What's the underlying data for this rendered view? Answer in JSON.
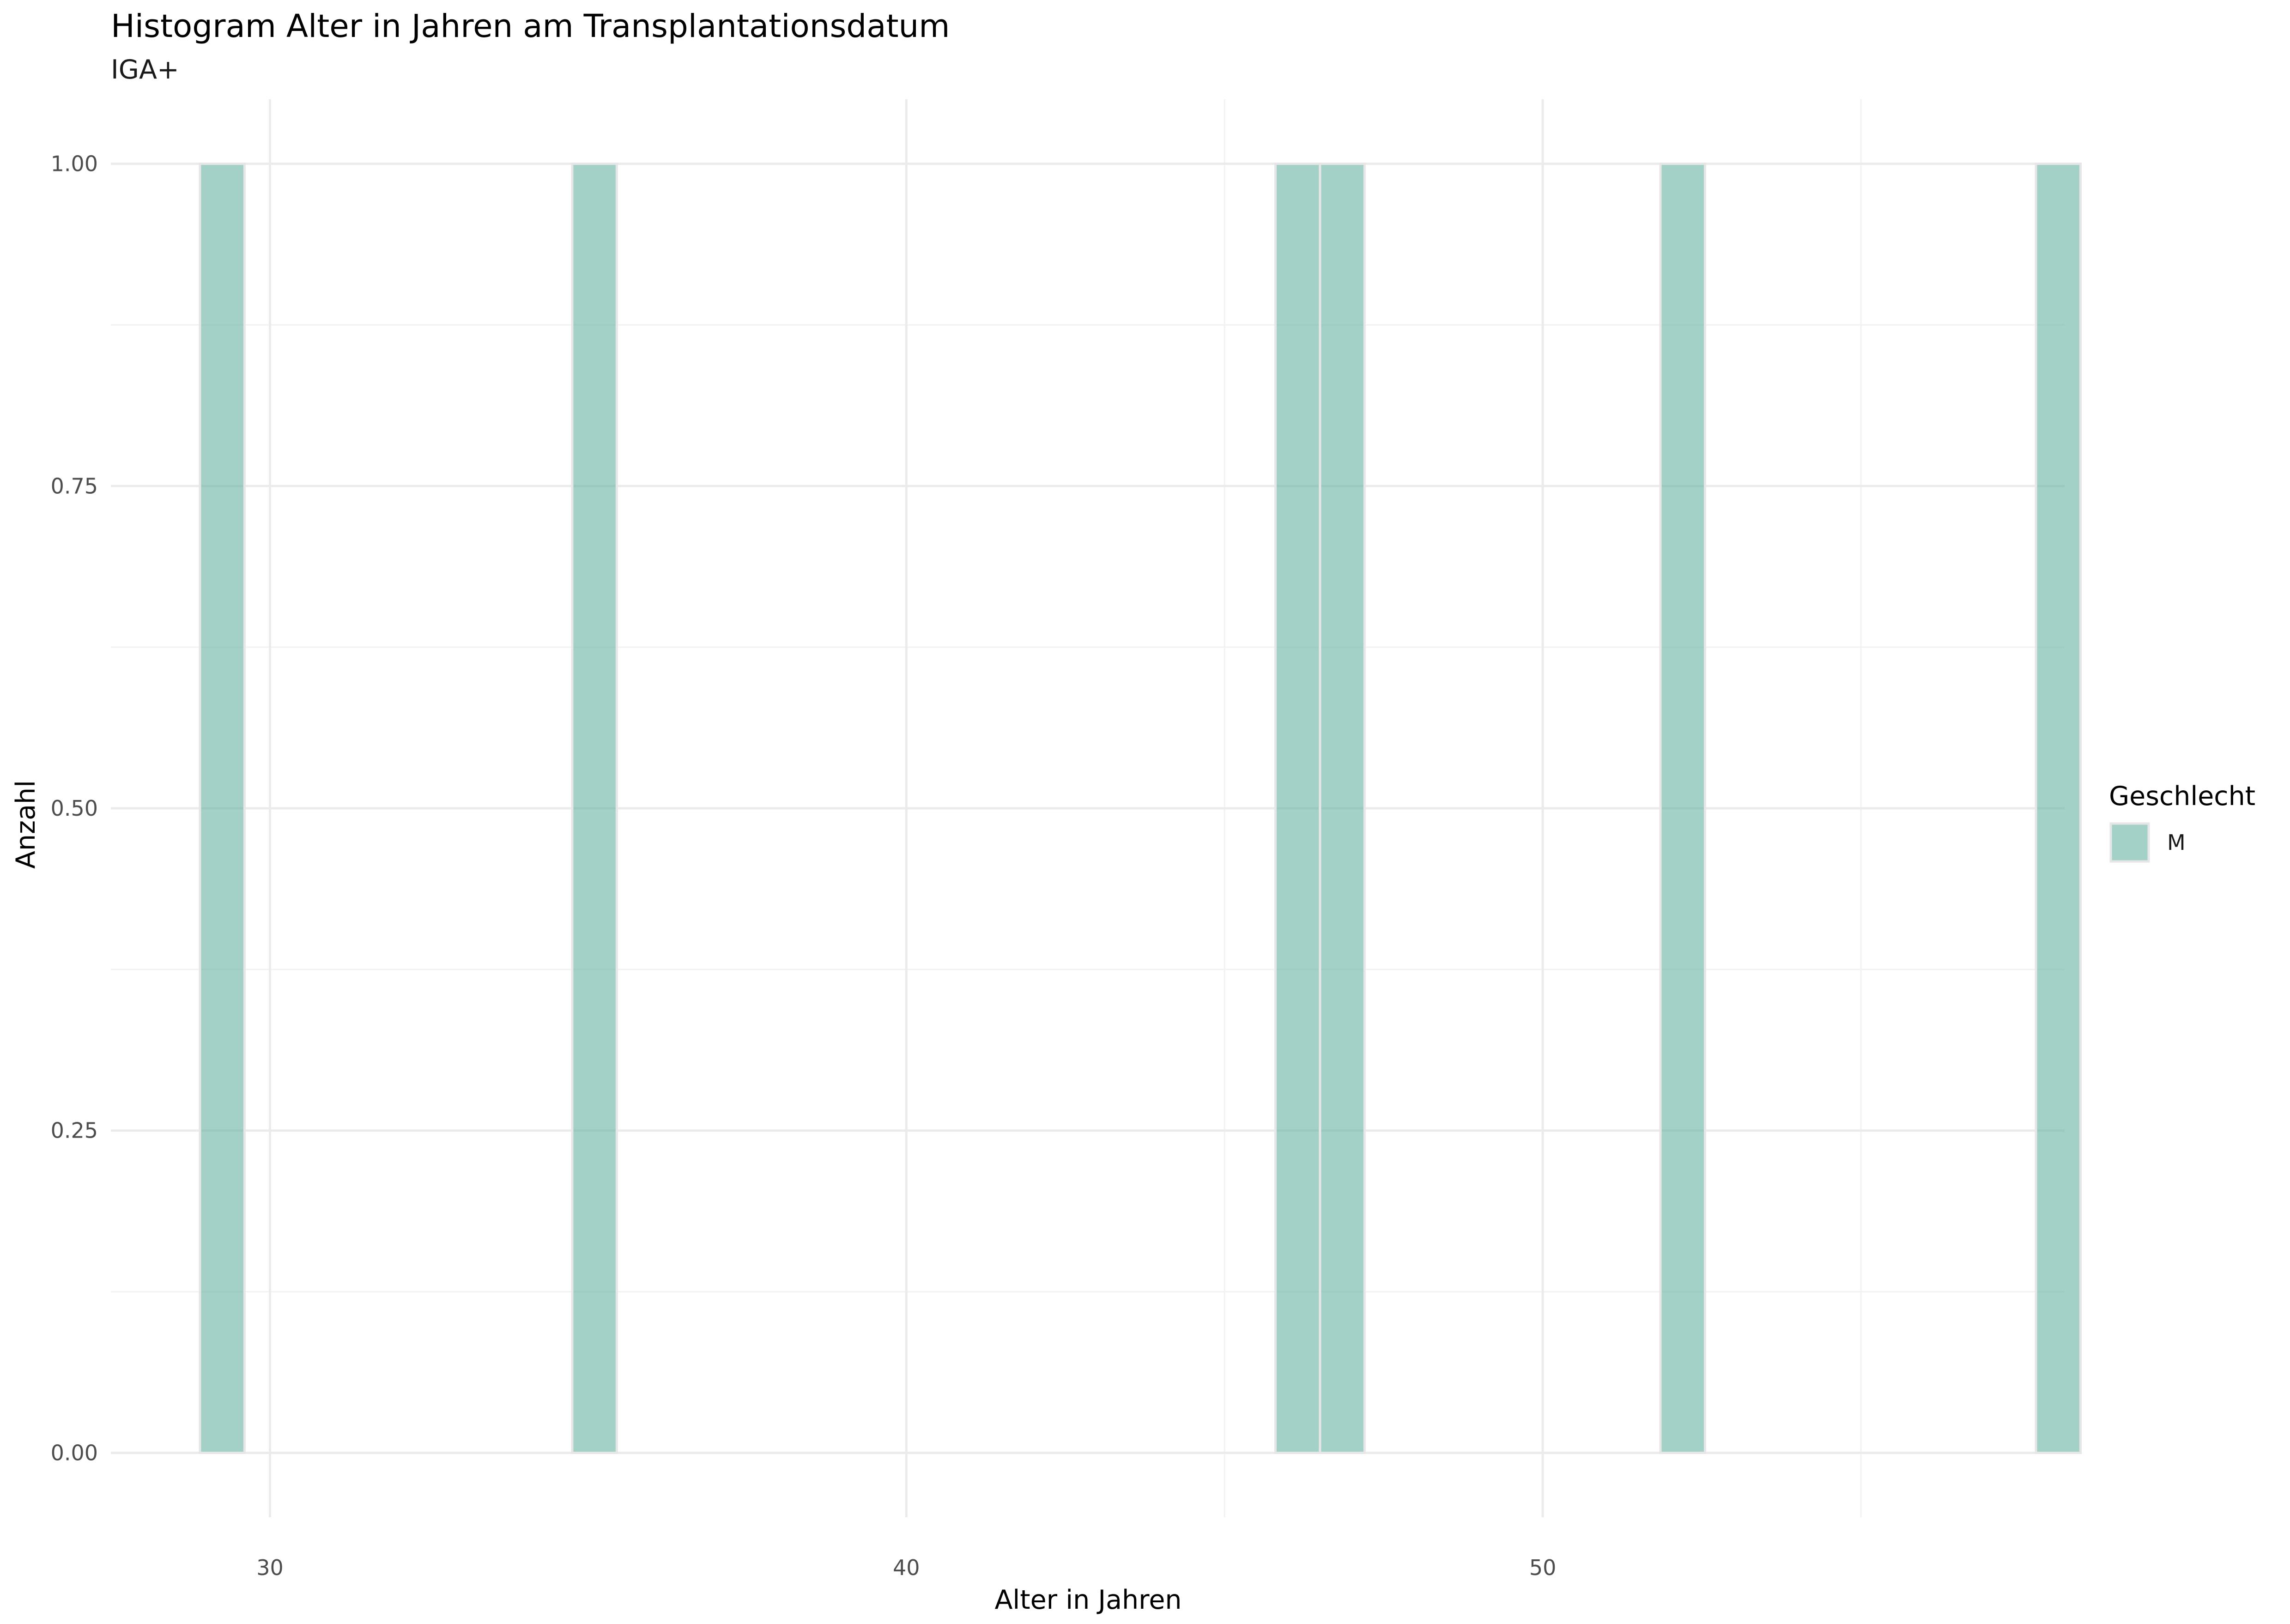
{
  "chart_data": {
    "type": "bar",
    "title": "Histogram Alter in Jahren am Transplantationsdatum",
    "subtitle": "IGA+",
    "xlabel": "Alter in Jahren",
    "ylabel": "Anzahl",
    "xlim": [
      27.5,
      58.2
    ],
    "ylim": [
      -0.05,
      1.05
    ],
    "x_ticks": [
      30,
      40,
      50
    ],
    "x_tick_labels": [
      "30",
      "40",
      "50"
    ],
    "x_minor_ticks": [
      45,
      55
    ],
    "y_ticks": [
      0,
      0.25,
      0.5,
      0.75,
      1
    ],
    "y_tick_labels": [
      "0.00",
      "0.25",
      "0.50",
      "0.75",
      "1.00"
    ],
    "y_minor_ticks": [
      0.125,
      0.375,
      0.625,
      0.875
    ],
    "bin_width": 0.7,
    "grid": true,
    "legend": {
      "title": "Geschlecht",
      "position": "right"
    },
    "series": [
      {
        "name": "M",
        "color": "#66b2a2",
        "bins": [
          {
            "x": 29.25,
            "count": 1
          },
          {
            "x": 35.1,
            "count": 1
          },
          {
            "x": 46.15,
            "count": 1
          },
          {
            "x": 46.85,
            "count": 1
          },
          {
            "x": 52.2,
            "count": 1
          },
          {
            "x": 58.1,
            "count": 1
          }
        ]
      }
    ]
  }
}
